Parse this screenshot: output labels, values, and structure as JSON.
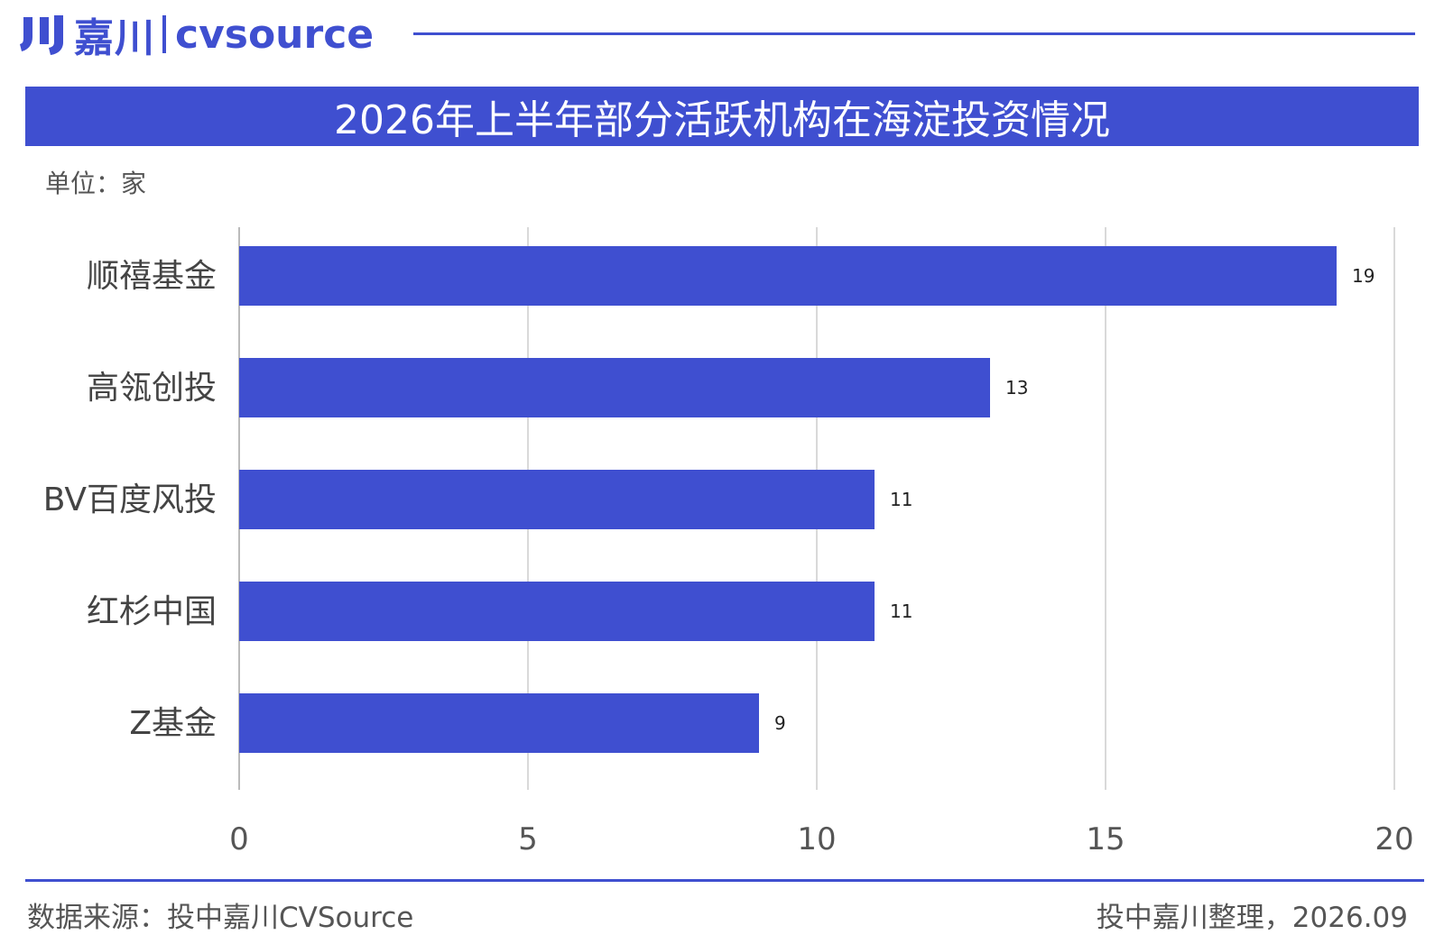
{
  "brand": {
    "name_cn": "嘉川",
    "name_en": "cvsource",
    "color": "#3f4fd0"
  },
  "title": "2026年上半年部分活跃机构在海淀投资情况",
  "unit_label": "单位：家",
  "footer": {
    "source": "数据来源：投中嘉川CVSource",
    "credit": "投中嘉川整理，2026.09"
  },
  "chart_data": {
    "type": "bar",
    "orientation": "horizontal",
    "categories": [
      "顺禧基金",
      "高瓴创投",
      "BV百度风投",
      "红杉中国",
      "Z基金"
    ],
    "values": [
      19,
      13,
      11,
      11,
      9
    ],
    "data_labels": [
      "19",
      "13",
      "11",
      "11",
      "9"
    ],
    "xlim": [
      0,
      20
    ],
    "xticks": [
      0,
      5,
      10,
      15,
      20
    ],
    "xtick_labels": [
      "0",
      "5",
      "10",
      "15",
      "20"
    ],
    "grid": "vertical",
    "bar_color": "#3f4fd0",
    "title": "2026年上半年部分活跃机构在海淀投资情况",
    "xlabel": "",
    "ylabel": ""
  }
}
